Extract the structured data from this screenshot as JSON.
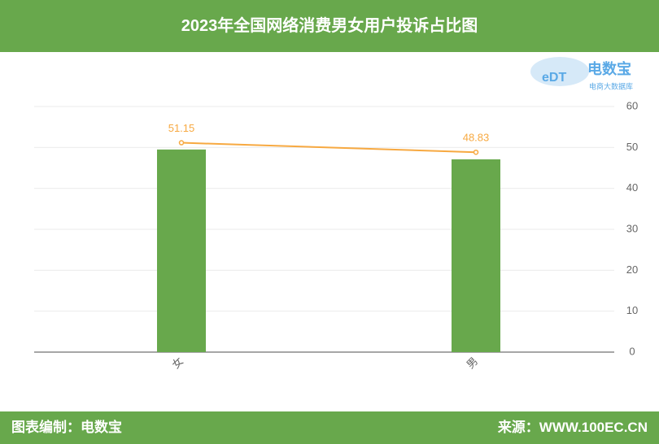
{
  "header": {
    "title": "2023年全国网络消费男女用户投诉占比图"
  },
  "logo": {
    "mark": "eDT",
    "name": "电数宝",
    "tagline": "电商大数据库"
  },
  "chart_data": {
    "type": "bar-line",
    "categories": [
      "女",
      "男"
    ],
    "series": [
      {
        "type": "bar",
        "color": "#68a84c",
        "values": [
          49.5,
          47.1
        ]
      },
      {
        "type": "line",
        "color": "#f7a941",
        "values": [
          51.15,
          48.83
        ]
      }
    ],
    "ylim": [
      0,
      60
    ],
    "yticks": [
      0,
      10,
      20,
      30,
      40,
      50,
      60
    ],
    "y_axis_side": "right",
    "grid": true
  },
  "footer": {
    "left": "图表编制：电数宝",
    "right": "来源：WWW.100EC.CN"
  }
}
